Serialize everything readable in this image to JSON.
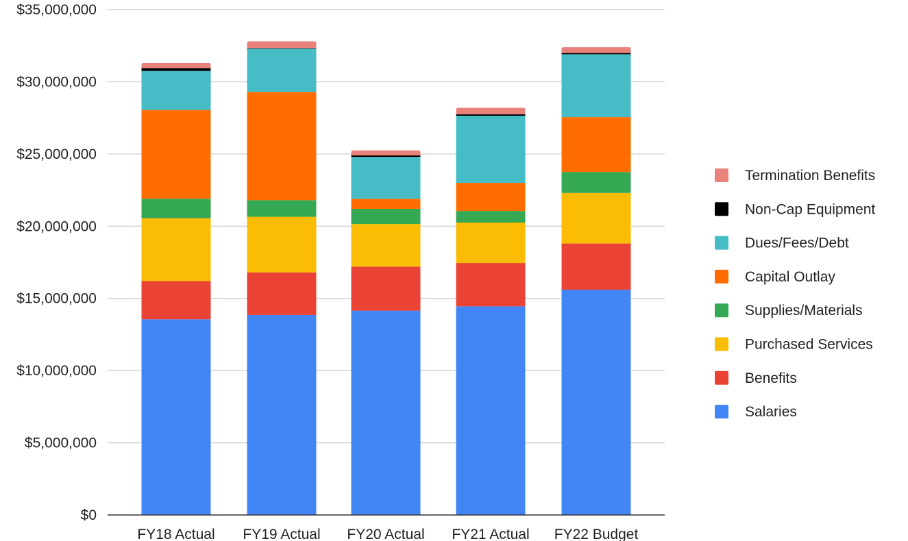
{
  "chart_data": {
    "type": "bar",
    "stacked": true,
    "categories": [
      "FY18 Actual",
      "FY19 Actual",
      "FY20 Actual",
      "FY21 Actual",
      "FY22 Budget"
    ],
    "series": [
      {
        "name": "Salaries",
        "color": "#4285f4",
        "values": [
          13550000,
          13850000,
          14150000,
          14450000,
          15600000
        ]
      },
      {
        "name": "Benefits",
        "color": "#ea4335",
        "values": [
          2650000,
          2950000,
          3050000,
          3000000,
          3200000
        ]
      },
      {
        "name": "Purchased Services",
        "color": "#fbbc04",
        "values": [
          4350000,
          3850000,
          2950000,
          2800000,
          3500000
        ]
      },
      {
        "name": "Supplies/Materials",
        "color": "#34a853",
        "values": [
          1350000,
          1150000,
          1050000,
          800000,
          1450000
        ]
      },
      {
        "name": "Capital Outlay",
        "color": "#ff6d01",
        "values": [
          6150000,
          7500000,
          700000,
          1950000,
          3800000
        ]
      },
      {
        "name": "Dues/Fees/Debt",
        "color": "#46bdc6",
        "values": [
          2700000,
          3000000,
          2900000,
          4650000,
          4350000
        ]
      },
      {
        "name": "Non-Cap Equipment",
        "color": "#000000",
        "values": [
          200000,
          30000,
          100000,
          100000,
          100000
        ]
      },
      {
        "name": "Termination Benefits",
        "color": "#e8827a",
        "values": [
          350000,
          470000,
          350000,
          450000,
          400000
        ]
      }
    ],
    "y_ticks": [
      "$0",
      "$5,000,000",
      "$10,000,000",
      "$15,000,000",
      "$20,000,000",
      "$25,000,000",
      "$30,000,000",
      "$35,000,000"
    ],
    "ylim": [
      0,
      35000000
    ],
    "grid": true,
    "legend_position": "right",
    "legend_order": [
      "Termination Benefits",
      "Non-Cap Equipment",
      "Dues/Fees/Debt",
      "Capital Outlay",
      "Supplies/Materials",
      "Purchased Services",
      "Benefits",
      "Salaries"
    ],
    "title": "",
    "xlabel": "",
    "ylabel": ""
  }
}
